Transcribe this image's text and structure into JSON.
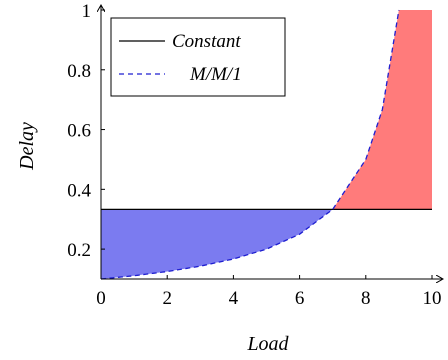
{
  "chart_data": {
    "type": "line",
    "xlabel": "Load",
    "ylabel": "Delay",
    "xlim": [
      0,
      10
    ],
    "ylim": [
      0.1,
      1.0
    ],
    "x_ticks": [
      0,
      2,
      4,
      6,
      8,
      10
    ],
    "y_ticks": [
      0.2,
      0.4,
      0.6,
      0.8,
      1
    ],
    "grid": false,
    "legend_position": "top-left",
    "series": [
      {
        "name": "Constant",
        "style": "solid",
        "color": "#000000",
        "x": [
          0,
          10
        ],
        "y": [
          0.333,
          0.333
        ]
      },
      {
        "name": "M/M/1",
        "style": "dashed",
        "color": "#1f1fd0",
        "x": [
          0,
          1,
          2,
          3,
          4,
          5,
          6,
          7,
          8,
          8.5,
          9
        ],
        "y": [
          0.1,
          0.111,
          0.125,
          0.143,
          0.167,
          0.2,
          0.25,
          0.333,
          0.5,
          0.667,
          1.0
        ]
      }
    ],
    "fills": [
      {
        "region": "between M/M/1 and Constant where M/M/1 < Constant",
        "color": "#7b7bf0",
        "x_range": [
          0,
          7
        ]
      },
      {
        "region": "between Constant and M/M/1 where M/M/1 > Constant",
        "color": "#ff7b7b",
        "x_range": [
          7,
          10
        ]
      }
    ]
  },
  "legend": {
    "items": [
      {
        "label": "Constant"
      },
      {
        "label": "M/M/1"
      }
    ]
  }
}
